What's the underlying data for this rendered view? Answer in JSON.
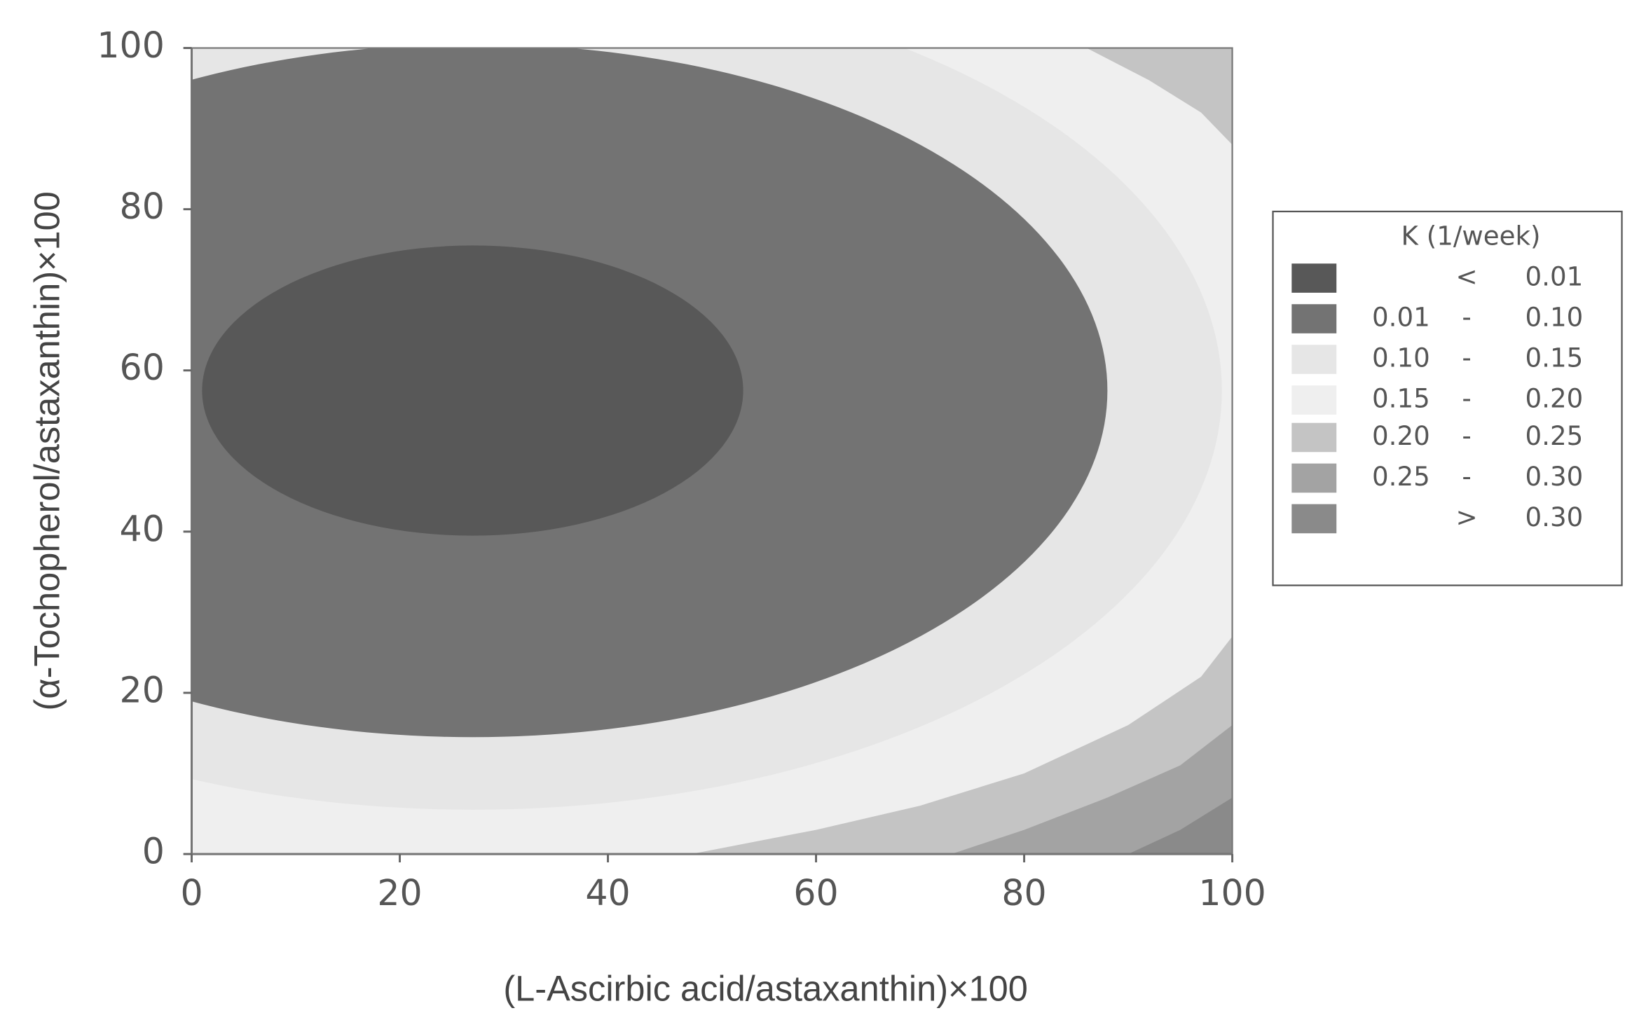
{
  "chart_data": {
    "type": "contour",
    "x_label": "(L-Ascirbic acid/astaxanthin)×100",
    "y_label": "(α-Tochopherol/astaxanthin)×100",
    "xlim": [
      0,
      100
    ],
    "ylim": [
      0,
      100
    ],
    "xticks": [
      0,
      20,
      40,
      60,
      80,
      100
    ],
    "yticks": [
      0,
      20,
      40,
      60,
      80,
      100
    ],
    "legend_title": "K (1/week)",
    "legend_position": "right",
    "levels": [
      {
        "color": "#585858",
        "sep": "<",
        "high": 0.01,
        "regions": [
          {
            "center": [
              27,
              57.5
            ],
            "radii": [
              26,
              18
            ]
          }
        ]
      },
      {
        "color": "#737373",
        "low": 0.01,
        "sep": "-",
        "high": {
          "value": 0.1,
          "label": "0.10"
        },
        "regions": [
          {
            "center": [
              27,
              57.5
            ],
            "radii": [
              61,
              43
            ]
          }
        ]
      },
      {
        "color": "#e6e6e6",
        "low": {
          "value": 0.1,
          "label": "0.10"
        },
        "sep": "-",
        "high": 0.15,
        "regions": [
          {
            "center": [
              27,
              57.5
            ],
            "radii": [
              72,
              52
            ]
          }
        ]
      },
      {
        "color": "#efefef",
        "low": 0.15,
        "sep": "-",
        "high": {
          "value": 0.2,
          "label": "0.20"
        },
        "regions": [
          {
            "points": [
              [
                0,
                0
              ],
              [
                100,
                0
              ],
              [
                100,
                100
              ],
              [
                0,
                100
              ]
            ]
          }
        ]
      },
      {
        "color": "#c4c4c4",
        "low": {
          "value": 0.2,
          "label": "0.20"
        },
        "sep": "-",
        "high": 0.25,
        "regions": [
          {
            "points": [
              [
                48,
                0
              ],
              [
                60,
                3
              ],
              [
                70,
                6
              ],
              [
                80,
                10
              ],
              [
                90,
                16
              ],
              [
                97,
                22
              ],
              [
                100,
                27
              ],
              [
                100,
                0
              ]
            ]
          },
          {
            "points": [
              [
                86,
                100
              ],
              [
                92,
                96
              ],
              [
                97,
                92
              ],
              [
                100,
                88
              ],
              [
                100,
                100
              ]
            ]
          }
        ]
      },
      {
        "color": "#a3a3a3",
        "low": 0.25,
        "sep": "-",
        "high": {
          "value": 0.3,
          "label": "0.30"
        },
        "regions": [
          {
            "points": [
              [
                73,
                0
              ],
              [
                80,
                3
              ],
              [
                88,
                7
              ],
              [
                95,
                11
              ],
              [
                100,
                16
              ],
              [
                100,
                0
              ]
            ]
          }
        ]
      },
      {
        "color": "#8a8a8a",
        "sep": ">",
        "high": {
          "value": 0.3,
          "label": "0.30"
        },
        "regions": [
          {
            "points": [
              [
                90,
                0
              ],
              [
                95,
                3
              ],
              [
                100,
                7
              ],
              [
                100,
                0
              ]
            ]
          }
        ]
      }
    ]
  }
}
